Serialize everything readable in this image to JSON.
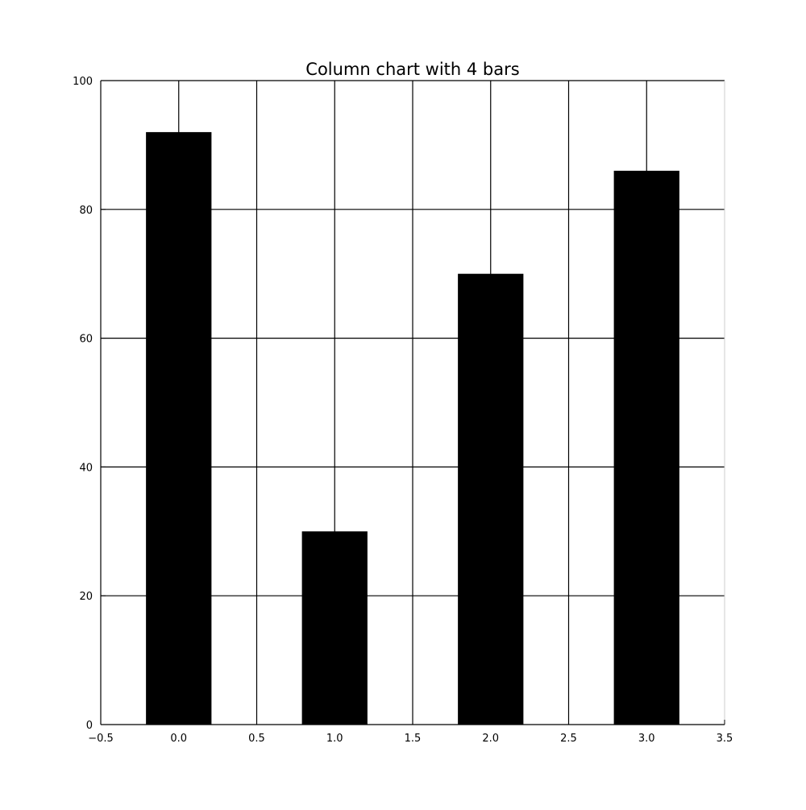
{
  "chart_data": {
    "type": "bar",
    "title": "Column chart with 4 bars",
    "xlabel": "",
    "ylabel": "",
    "x": [
      0,
      1,
      2,
      3
    ],
    "values": [
      92,
      30,
      70,
      86
    ],
    "bar_width": 0.42,
    "xlim": [
      -0.5,
      3.5
    ],
    "ylim": [
      0,
      100
    ],
    "xticks": [
      -0.5,
      0.0,
      0.5,
      1.0,
      1.5,
      2.0,
      2.5,
      3.0,
      3.5
    ],
    "xtick_labels": [
      "−0.5",
      "0.0",
      "0.5",
      "1.0",
      "1.5",
      "2.0",
      "2.5",
      "3.0",
      "3.5"
    ],
    "yticks": [
      0,
      20,
      40,
      60,
      80,
      100
    ],
    "ytick_labels": [
      "0",
      "20",
      "40",
      "60",
      "80",
      "100"
    ],
    "grid": true,
    "bar_color": "#000000",
    "grid_color": "#000000"
  }
}
